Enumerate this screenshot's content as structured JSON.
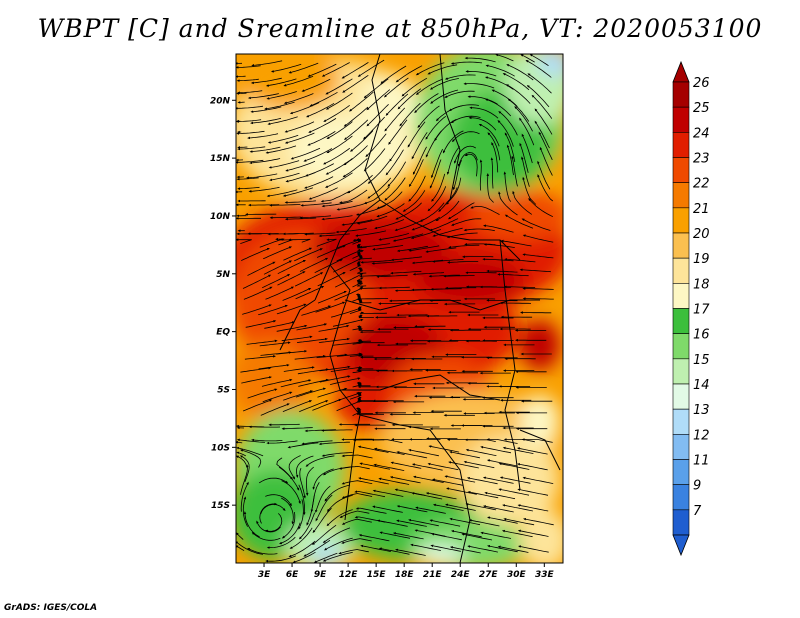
{
  "title": "WBPT [C] and Sreamline at 850hPa, VT: 2020053100",
  "footer": "GrADS: IGES/COLA",
  "map": {
    "lon_range": [
      0,
      35
    ],
    "lat_range": [
      -20,
      24
    ],
    "lat_ticks": [
      {
        "label": "20N",
        "value": 20
      },
      {
        "label": "15N",
        "value": 15
      },
      {
        "label": "10N",
        "value": 10
      },
      {
        "label": "5N",
        "value": 5
      },
      {
        "label": "EQ",
        "value": 0
      },
      {
        "label": "5S",
        "value": -5
      },
      {
        "label": "10S",
        "value": -10
      },
      {
        "label": "15S",
        "value": -15
      }
    ],
    "lon_ticks": [
      {
        "label": "3E",
        "value": 3
      },
      {
        "label": "6E",
        "value": 6
      },
      {
        "label": "9E",
        "value": 9
      },
      {
        "label": "12E",
        "value": 12
      },
      {
        "label": "15E",
        "value": 15
      },
      {
        "label": "18E",
        "value": 18
      },
      {
        "label": "21E",
        "value": 21
      },
      {
        "label": "24E",
        "value": 24
      },
      {
        "label": "27E",
        "value": 27
      },
      {
        "label": "30E",
        "value": 30
      },
      {
        "label": "33E",
        "value": 33
      }
    ]
  },
  "colorbar": {
    "levels": [
      {
        "label": "26",
        "color": "#a50000"
      },
      {
        "label": "25",
        "color": "#c00000"
      },
      {
        "label": "24",
        "color": "#e11e00"
      },
      {
        "label": "23",
        "color": "#f04a00"
      },
      {
        "label": "22",
        "color": "#f57a00"
      },
      {
        "label": "21",
        "color": "#f9a000"
      },
      {
        "label": "20",
        "color": "#fbc050"
      },
      {
        "label": "19",
        "color": "#fde49a"
      },
      {
        "label": "18",
        "color": "#fdf7c4"
      },
      {
        "label": "17",
        "color": "#3cbf3c"
      },
      {
        "label": "16",
        "color": "#7fda6a"
      },
      {
        "label": "15",
        "color": "#bff0b0"
      },
      {
        "label": "14",
        "color": "#e2fae6"
      },
      {
        "label": "13",
        "color": "#b0dcf8"
      },
      {
        "label": "12",
        "color": "#82bcf2"
      },
      {
        "label": "11",
        "color": "#5aa0ea"
      },
      {
        "label": "9",
        "color": "#3a82e0"
      },
      {
        "label": "7",
        "color": "#1f5ed0"
      }
    ],
    "low_color": "#1f5ed0",
    "high_color": "#a50000"
  },
  "streamline_color": "#000000"
}
